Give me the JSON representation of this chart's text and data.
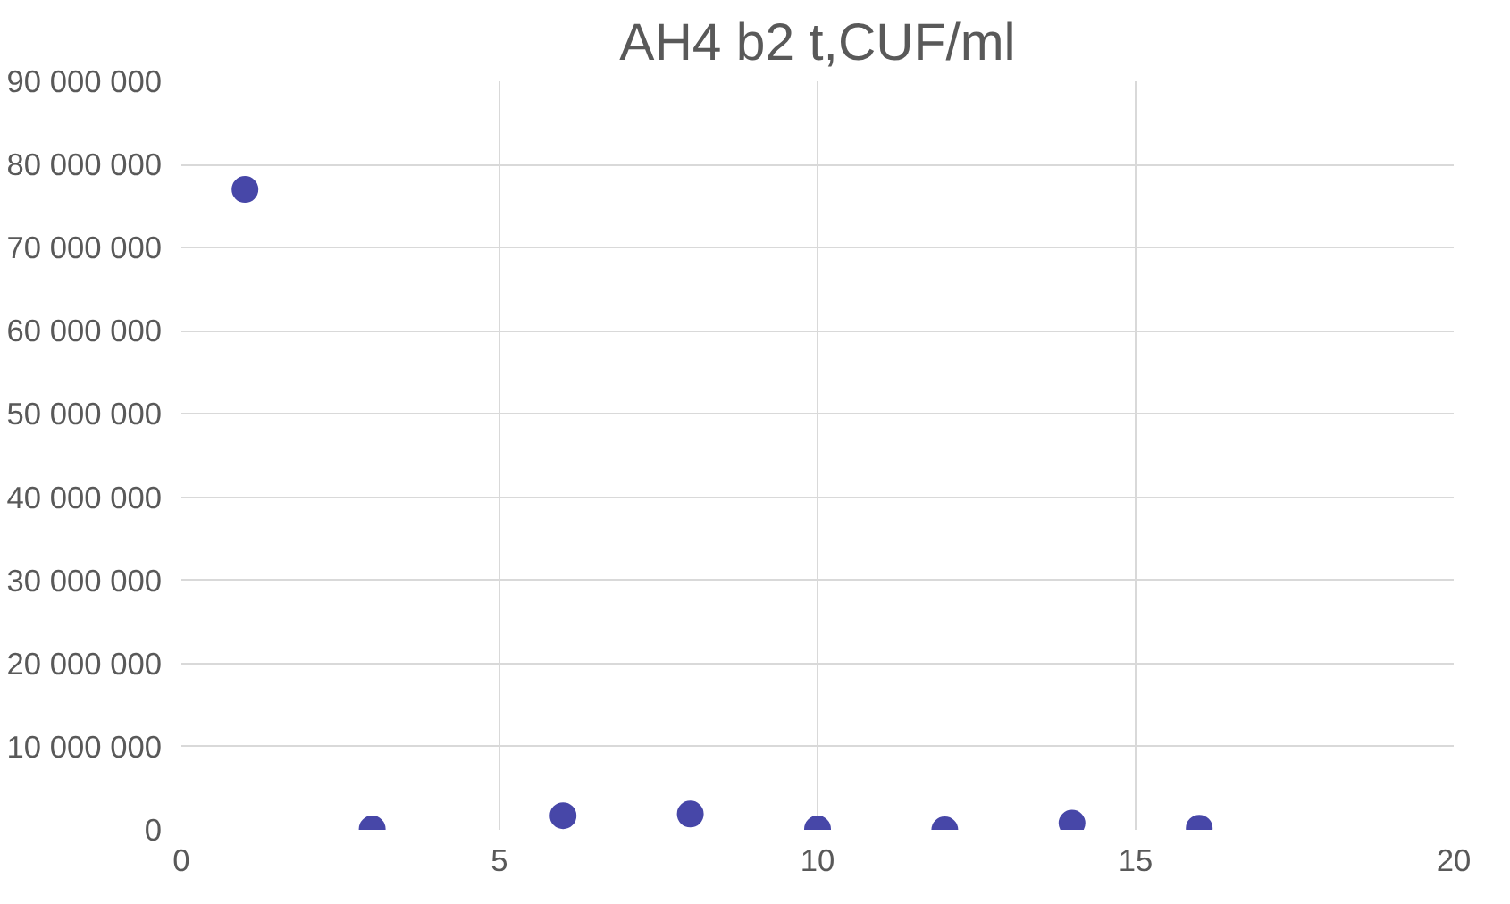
{
  "chart_data": {
    "type": "scatter",
    "title": "AH4 b2 t,CUF/ml",
    "x": [
      1,
      3,
      6,
      8,
      10,
      12,
      14,
      16
    ],
    "series": [
      {
        "color": "#4747a8",
        "values": [
          77000000,
          100000,
          1700000,
          1900000,
          100000,
          0,
          800000,
          200000
        ]
      }
    ],
    "xlim": [
      0,
      20
    ],
    "xticks": [
      0,
      5,
      10,
      15,
      20
    ],
    "ylim": [
      0,
      90000000
    ],
    "yticks": [
      {
        "value": 0,
        "label": "0"
      },
      {
        "value": 10000000,
        "label": "10 000 000"
      },
      {
        "value": 20000000,
        "label": "20 000 000"
      },
      {
        "value": 30000000,
        "label": "30 000 000"
      },
      {
        "value": 40000000,
        "label": "40 000 000"
      },
      {
        "value": 50000000,
        "label": "50 000 000"
      },
      {
        "value": 60000000,
        "label": "60 000 000"
      },
      {
        "value": 70000000,
        "label": "70 000 000"
      },
      {
        "value": 80000000,
        "label": "80 000 000"
      },
      {
        "value": 90000000,
        "label": "90 000 000"
      }
    ],
    "grid": true,
    "marker": "circle"
  }
}
